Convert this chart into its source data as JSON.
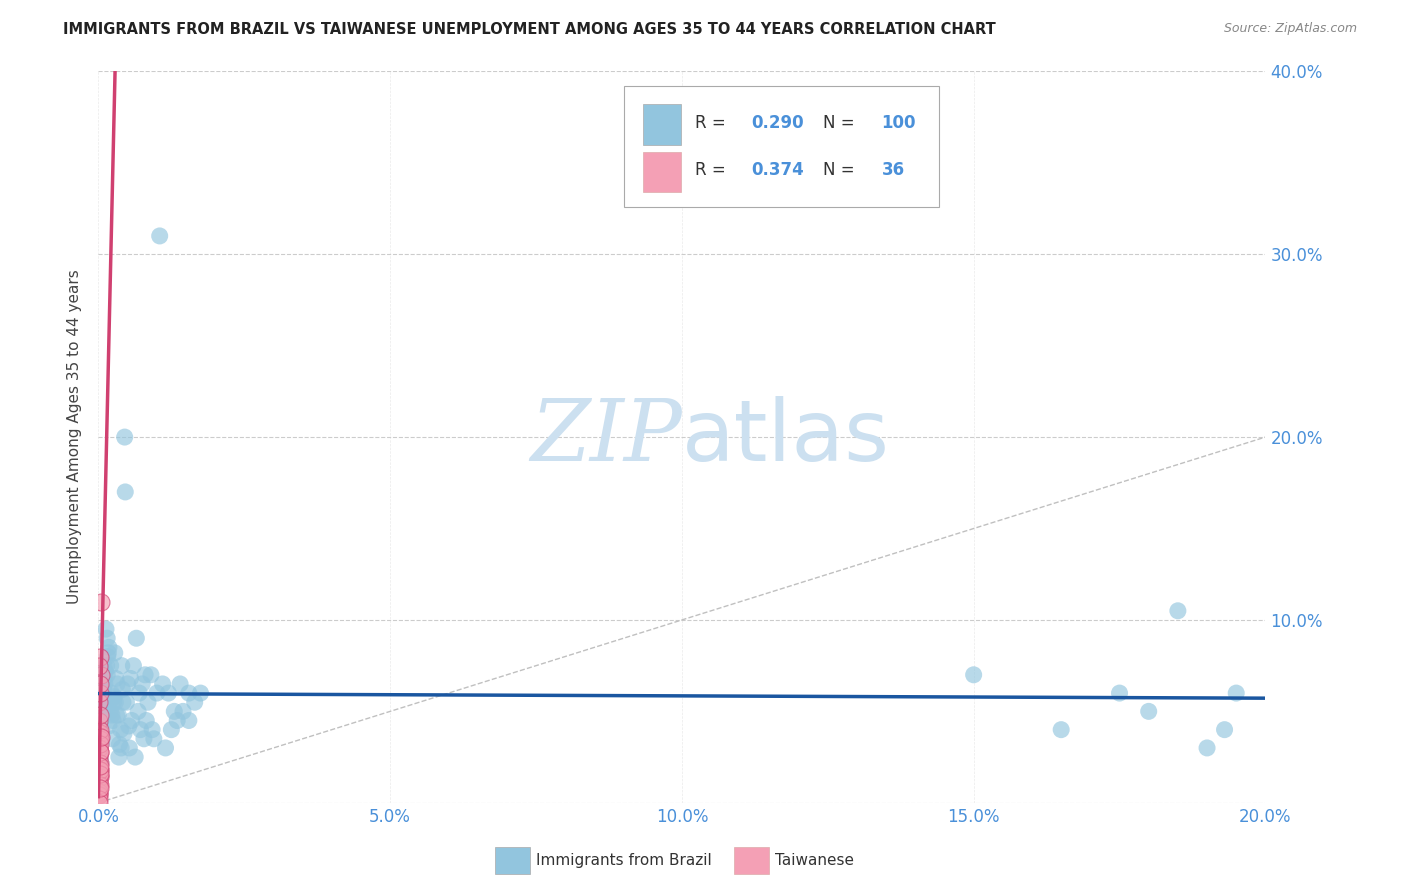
{
  "title": "IMMIGRANTS FROM BRAZIL VS TAIWANESE UNEMPLOYMENT AMONG AGES 35 TO 44 YEARS CORRELATION CHART",
  "source": "Source: ZipAtlas.com",
  "ylabel": "Unemployment Among Ages 35 to 44 years",
  "xlim": [
    0,
    0.2
  ],
  "ylim": [
    0,
    0.4
  ],
  "xticks": [
    0.0,
    0.05,
    0.1,
    0.15,
    0.2
  ],
  "yticks": [
    0.0,
    0.1,
    0.2,
    0.3,
    0.4
  ],
  "xtick_labels": [
    "0.0%",
    "5.0%",
    "10.0%",
    "15.0%",
    "20.0%"
  ],
  "ytick_labels_right": [
    "",
    "10.0%",
    "20.0%",
    "30.0%",
    "40.0%"
  ],
  "legend_label1": "Immigrants from Brazil",
  "legend_label2": "Taiwanese",
  "R1": "0.290",
  "N1": "100",
  "R2": "0.374",
  "N2": "36",
  "color_blue": "#92c5de",
  "color_blue_line": "#1a56a0",
  "color_pink": "#f4a0b5",
  "color_pink_line": "#d04070",
  "color_axis_labels": "#4a90d9",
  "watermark_color": "#cce0f0",
  "background": "#ffffff",
  "brazil_x": [
    0.0002,
    0.0003,
    0.0005,
    0.0002,
    0.0004,
    0.0003,
    0.0006,
    0.0002,
    0.0004,
    0.0003,
    0.0005,
    0.0007,
    0.0008,
    0.0006,
    0.001,
    0.0004,
    0.0009,
    0.0003,
    0.0007,
    0.0011,
    0.0012,
    0.0009,
    0.0015,
    0.0013,
    0.001,
    0.0018,
    0.0014,
    0.0016,
    0.0012,
    0.0011,
    0.002,
    0.0017,
    0.0019,
    0.0022,
    0.0015,
    0.0025,
    0.0021,
    0.0023,
    0.0018,
    0.0028,
    0.003,
    0.0024,
    0.0027,
    0.0026,
    0.0032,
    0.0029,
    0.0035,
    0.0031,
    0.0034,
    0.0038,
    0.004,
    0.0036,
    0.0042,
    0.0039,
    0.0045,
    0.0041,
    0.0048,
    0.0044,
    0.005,
    0.0046,
    0.0055,
    0.0052,
    0.006,
    0.0057,
    0.0065,
    0.0053,
    0.007,
    0.0063,
    0.0075,
    0.0068,
    0.008,
    0.0072,
    0.0085,
    0.0078,
    0.009,
    0.0082,
    0.01,
    0.0092,
    0.011,
    0.0095,
    0.012,
    0.0105,
    0.013,
    0.0115,
    0.014,
    0.0125,
    0.0155,
    0.0135,
    0.0165,
    0.0145,
    0.0175,
    0.0155,
    0.15,
    0.165,
    0.175,
    0.18,
    0.185,
    0.19,
    0.195,
    0.193
  ],
  "brazil_y": [
    0.04,
    0.035,
    0.05,
    0.03,
    0.045,
    0.038,
    0.06,
    0.032,
    0.042,
    0.028,
    0.065,
    0.055,
    0.07,
    0.035,
    0.075,
    0.022,
    0.058,
    0.025,
    0.068,
    0.055,
    0.052,
    0.062,
    0.09,
    0.095,
    0.068,
    0.085,
    0.075,
    0.08,
    0.072,
    0.065,
    0.05,
    0.082,
    0.055,
    0.06,
    0.07,
    0.045,
    0.075,
    0.048,
    0.042,
    0.082,
    0.068,
    0.035,
    0.058,
    0.055,
    0.065,
    0.055,
    0.025,
    0.048,
    0.048,
    0.04,
    0.075,
    0.032,
    0.055,
    0.03,
    0.2,
    0.062,
    0.055,
    0.038,
    0.065,
    0.17,
    0.068,
    0.042,
    0.075,
    0.045,
    0.09,
    0.03,
    0.06,
    0.025,
    0.065,
    0.05,
    0.07,
    0.04,
    0.055,
    0.035,
    0.07,
    0.045,
    0.06,
    0.04,
    0.065,
    0.035,
    0.06,
    0.31,
    0.05,
    0.03,
    0.065,
    0.04,
    0.06,
    0.045,
    0.055,
    0.05,
    0.06,
    0.045,
    0.07,
    0.04,
    0.06,
    0.05,
    0.105,
    0.03,
    0.06,
    0.04
  ],
  "taiwan_x": [
    0.0001,
    0.0002,
    0.0001,
    0.0003,
    0.0002,
    0.0001,
    0.0004,
    0.0001,
    0.0002,
    0.0001,
    0.0003,
    0.0002,
    0.0001,
    0.0002,
    0.0003,
    0.0001,
    0.0002,
    0.0001,
    0.0003,
    0.0001,
    0.0002,
    0.0001,
    0.0003,
    0.0002,
    0.0001,
    0.0003,
    0.0002,
    0.0001,
    0.0004,
    0.0002,
    0.0001,
    0.0002,
    0.0003,
    0.0001,
    0.0002,
    0.0004
  ],
  "taiwan_y": [
    0.045,
    0.038,
    0.055,
    0.06,
    0.035,
    0.025,
    0.07,
    0.02,
    0.08,
    0.03,
    0.04,
    0.015,
    0.075,
    0.028,
    0.048,
    0.01,
    0.022,
    0.012,
    0.065,
    0.008,
    0.018,
    0.005,
    0.032,
    0.014,
    0.006,
    0.028,
    0.018,
    0.004,
    0.036,
    0.01,
    0.002,
    0.016,
    0.02,
    0.0,
    0.008,
    0.11
  ]
}
